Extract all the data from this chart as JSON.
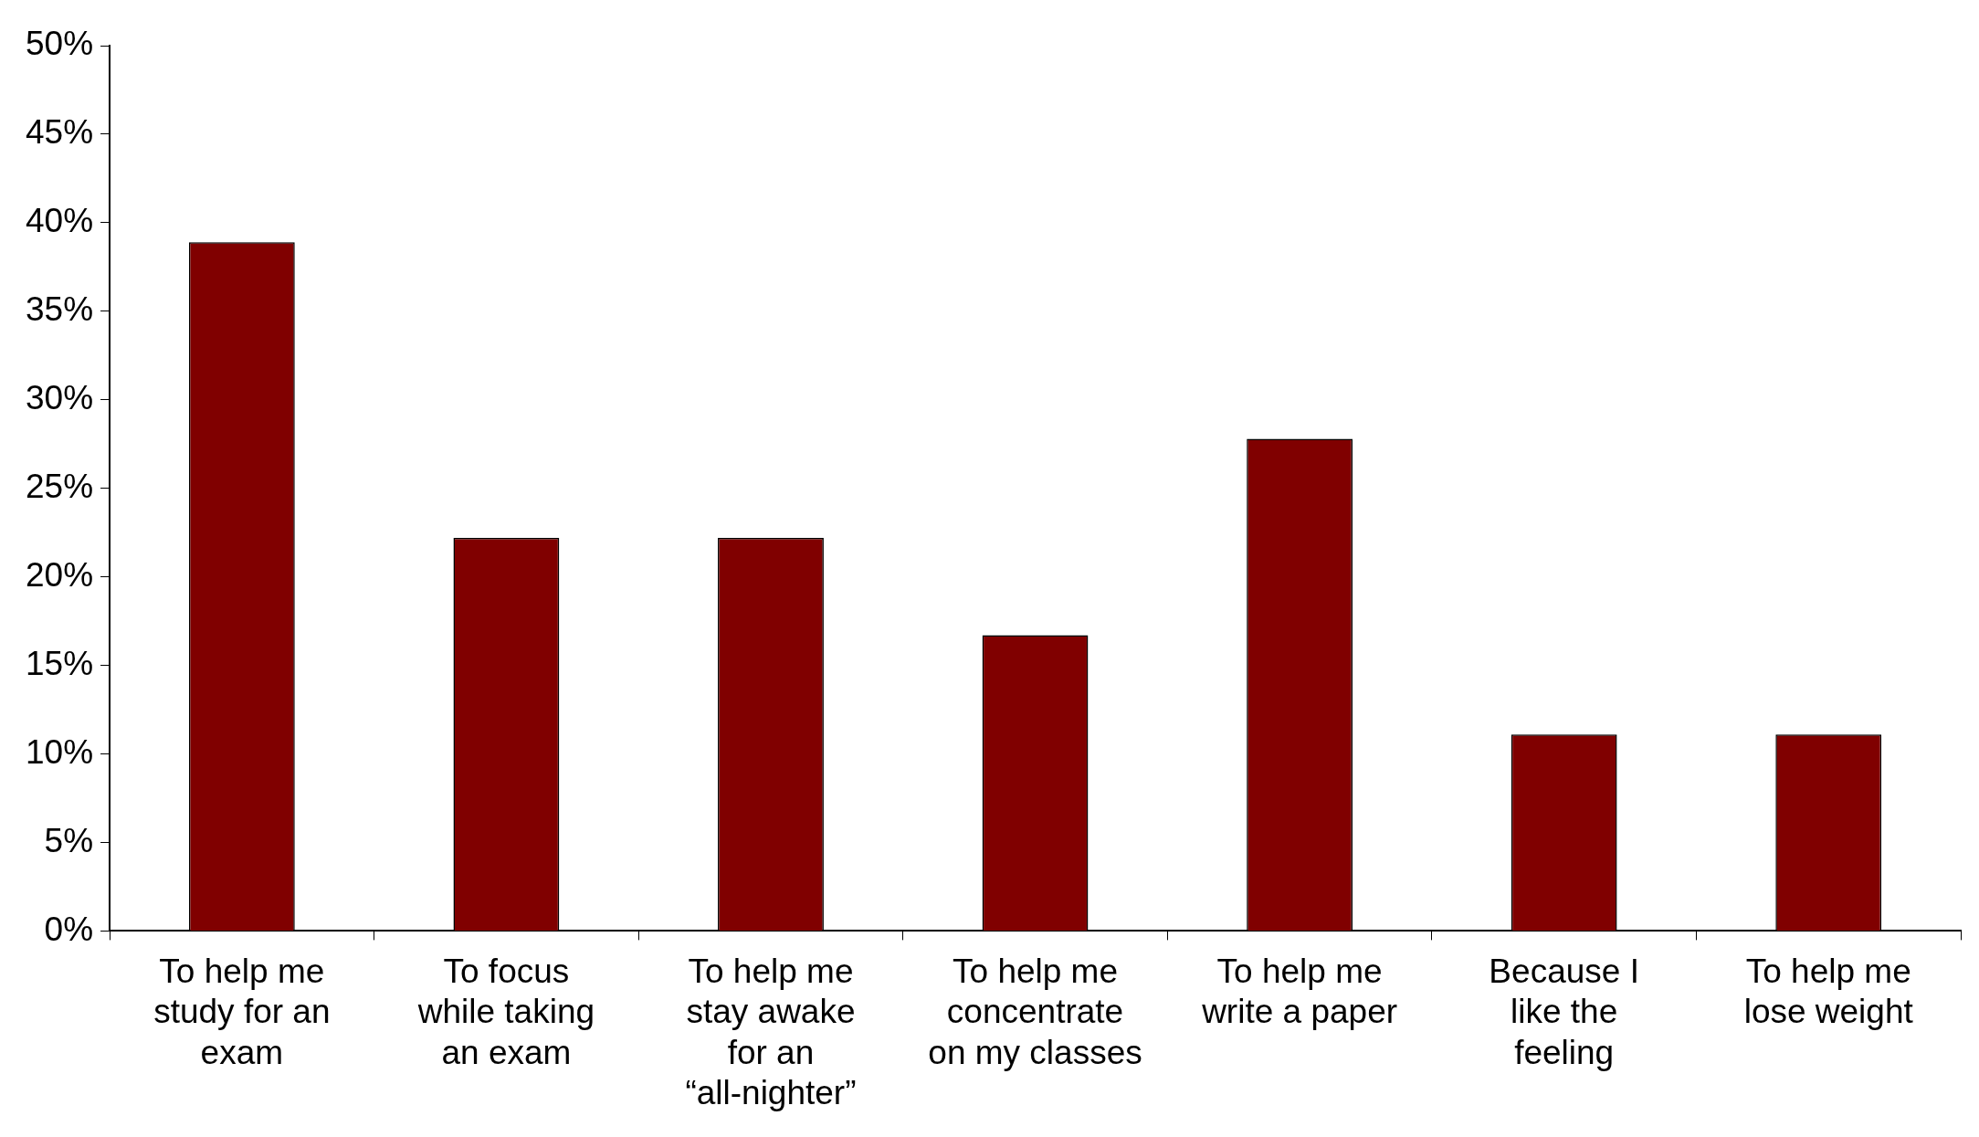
{
  "chart_data": {
    "type": "bar",
    "categories": [
      "To help me study for an exam",
      "To focus while taking an exam",
      "To help me stay awake for an “all-nighter”",
      "To help me concentrate on my classes",
      "To help me write a paper",
      "Because I like the feeling",
      "To help me lose weight"
    ],
    "values": [
      38.9,
      22.2,
      22.2,
      16.7,
      27.8,
      11.1,
      11.1
    ],
    "color": "#800000",
    "ylim": [
      0,
      50
    ],
    "yticks": [
      {
        "value": 0,
        "label": "0%"
      },
      {
        "value": 5,
        "label": "5%"
      },
      {
        "value": 10,
        "label": "10%"
      },
      {
        "value": 15,
        "label": "15%"
      },
      {
        "value": 20,
        "label": "20%"
      },
      {
        "value": 25,
        "label": "25%"
      },
      {
        "value": 30,
        "label": "30%"
      },
      {
        "value": 35,
        "label": "35%"
      },
      {
        "value": 40,
        "label": "40%"
      },
      {
        "value": 45,
        "label": "45%"
      },
      {
        "value": 50,
        "label": "50%"
      }
    ],
    "grid": false,
    "legend": false
  }
}
